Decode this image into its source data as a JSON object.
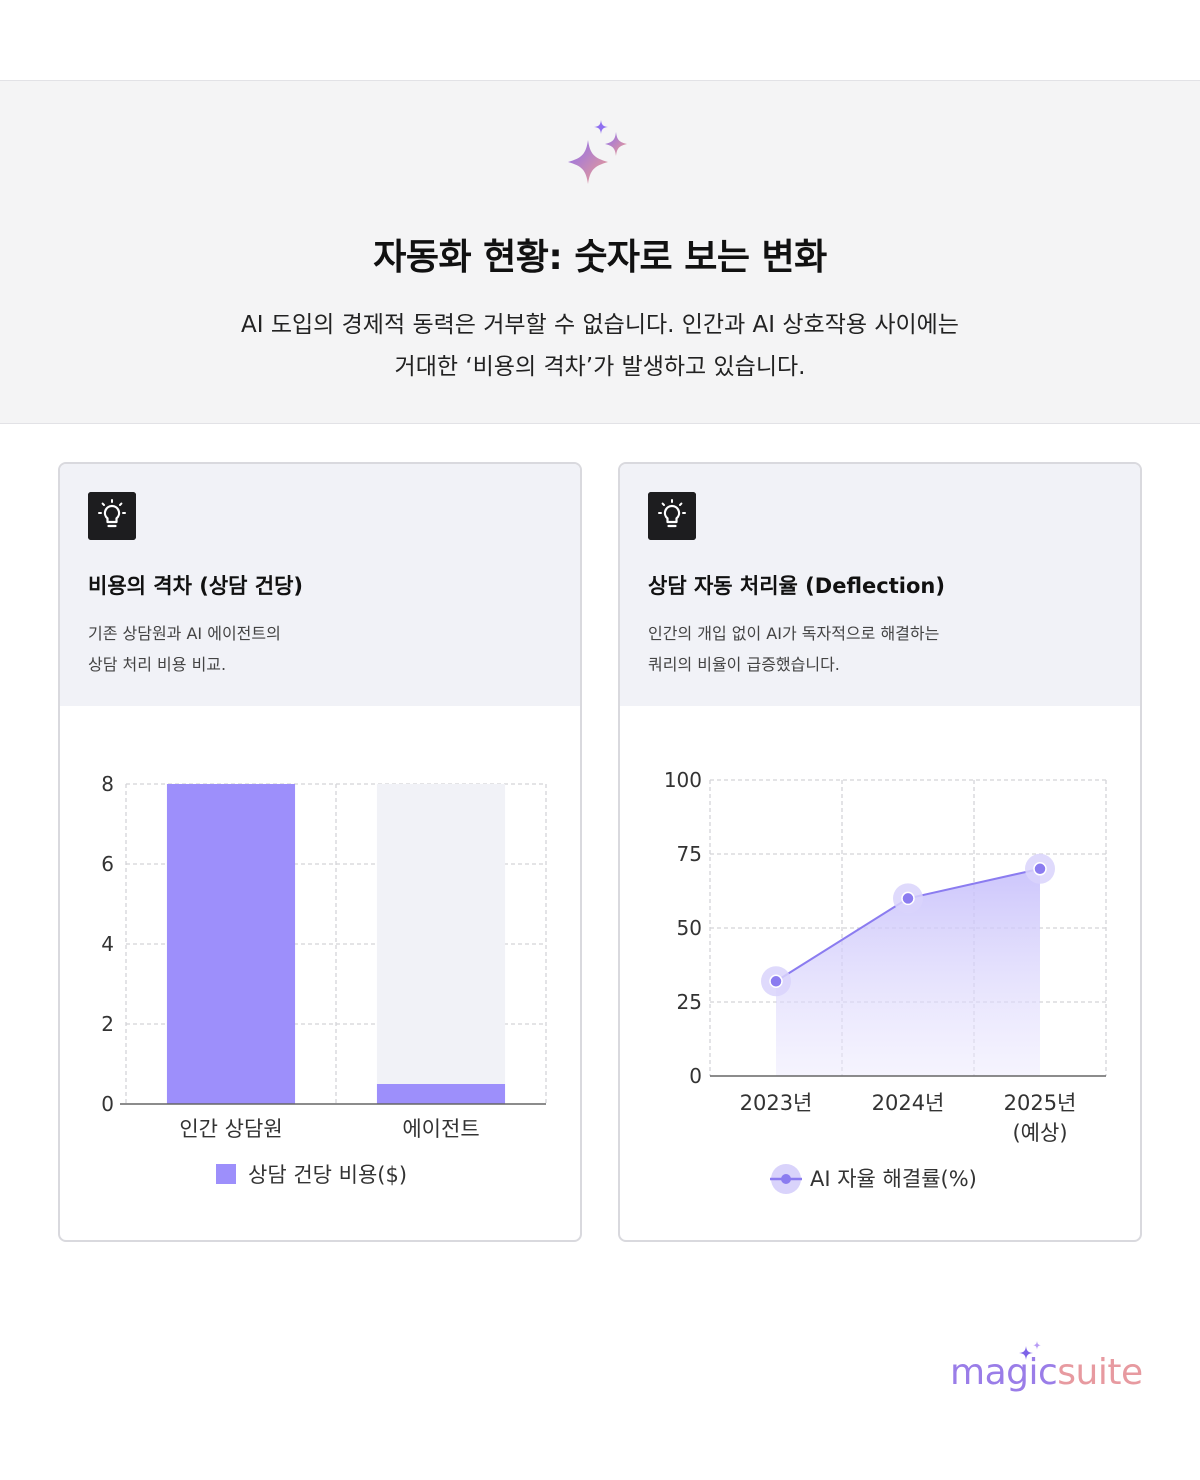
{
  "hero": {
    "icon": "sparkles-icon",
    "title": "자동화 현황: 숫자로 보는 변화",
    "subtitle_line1": "AI 도입의 경제적 동력은 거부할 수 없습니다. 인간과 AI 상호작용 사이에는",
    "subtitle_line2": "거대한 ‘비용의 격차’가 발생하고 있습니다."
  },
  "cards": [
    {
      "icon": "lightbulb-icon",
      "title": "비용의 격차 (상담 건당)",
      "desc_line1": "기존 상담원과 AI 에이전트의",
      "desc_line2": "상담 처리 비용 비교."
    },
    {
      "icon": "lightbulb-icon",
      "title": "상담 자동 처리율 (Deflection)",
      "desc_line1": "인간의 개입 없이 AI가 독자적으로 해결하는",
      "desc_line2": "쿼리의 비율이 급증했습니다."
    }
  ],
  "chart_data": [
    {
      "type": "bar",
      "categories": [
        "인간 상담원",
        "에이전트"
      ],
      "series": [
        {
          "name": "상담 건당 비용($)",
          "values": [
            8,
            0.5
          ]
        }
      ],
      "ylim": [
        0,
        8
      ],
      "yticks": [
        "0",
        "2",
        "4",
        "6",
        "8"
      ],
      "grid": true,
      "legend": "bottom",
      "color": "#9d8ffb",
      "track_color": "#f1f2f7"
    },
    {
      "type": "area",
      "categories": [
        "2023년",
        "2024년",
        "2025년\n(예상)"
      ],
      "series": [
        {
          "name": "AI 자율 해결률(%)",
          "values": [
            32,
            60,
            70
          ]
        }
      ],
      "ylim": [
        0,
        100
      ],
      "yticks": [
        "0",
        "25",
        "50",
        "75",
        "100"
      ],
      "grid": true,
      "legend": "bottom",
      "color": "#8b7cf0"
    }
  ],
  "logo": {
    "part1": "magic",
    "part2": "suite"
  }
}
